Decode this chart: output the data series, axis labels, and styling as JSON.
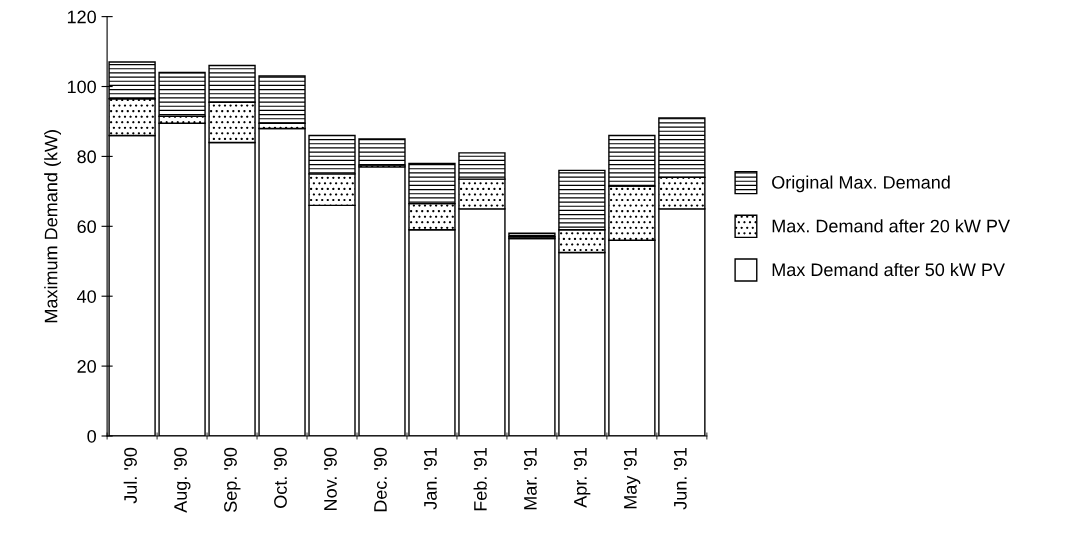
{
  "chart_data": {
    "type": "bar",
    "stacked": true,
    "ylabel": "Maximum Demand (kW)",
    "categories": [
      "Jul. '90",
      "Aug. '90",
      "Sep. '90",
      "Oct. '90",
      "Nov. '90",
      "Dec. '90",
      "Jan. '91",
      "Feb. '91",
      "Mar. '91",
      "Apr. '91",
      "May '91",
      "Jun. '91"
    ],
    "series": [
      {
        "name": "Max Demand after 50 kW PV",
        "color": "#ffffff",
        "values": [
          86,
          89.5,
          84,
          88,
          66,
          77,
          59,
          65,
          56.5,
          52.5,
          56,
          65
        ]
      },
      {
        "name": "Max. Demand after 20 kW PV",
        "color": "#000000",
        "values": [
          10.5,
          2,
          11.5,
          1.5,
          9,
          0.5,
          7.5,
          8.5,
          0.5,
          6.5,
          15.5,
          9
        ]
      },
      {
        "name": "Original Max. Demand",
        "color": "#000000",
        "values": [
          10.5,
          12.5,
          10.5,
          13.5,
          11,
          7.5,
          11.5,
          7.5,
          1,
          17,
          14.5,
          17
        ]
      }
    ],
    "ylim": [
      0,
      120
    ],
    "yticks": [
      0,
      20,
      40,
      60,
      80,
      100,
      120
    ],
    "grid": false,
    "legend": "right"
  }
}
